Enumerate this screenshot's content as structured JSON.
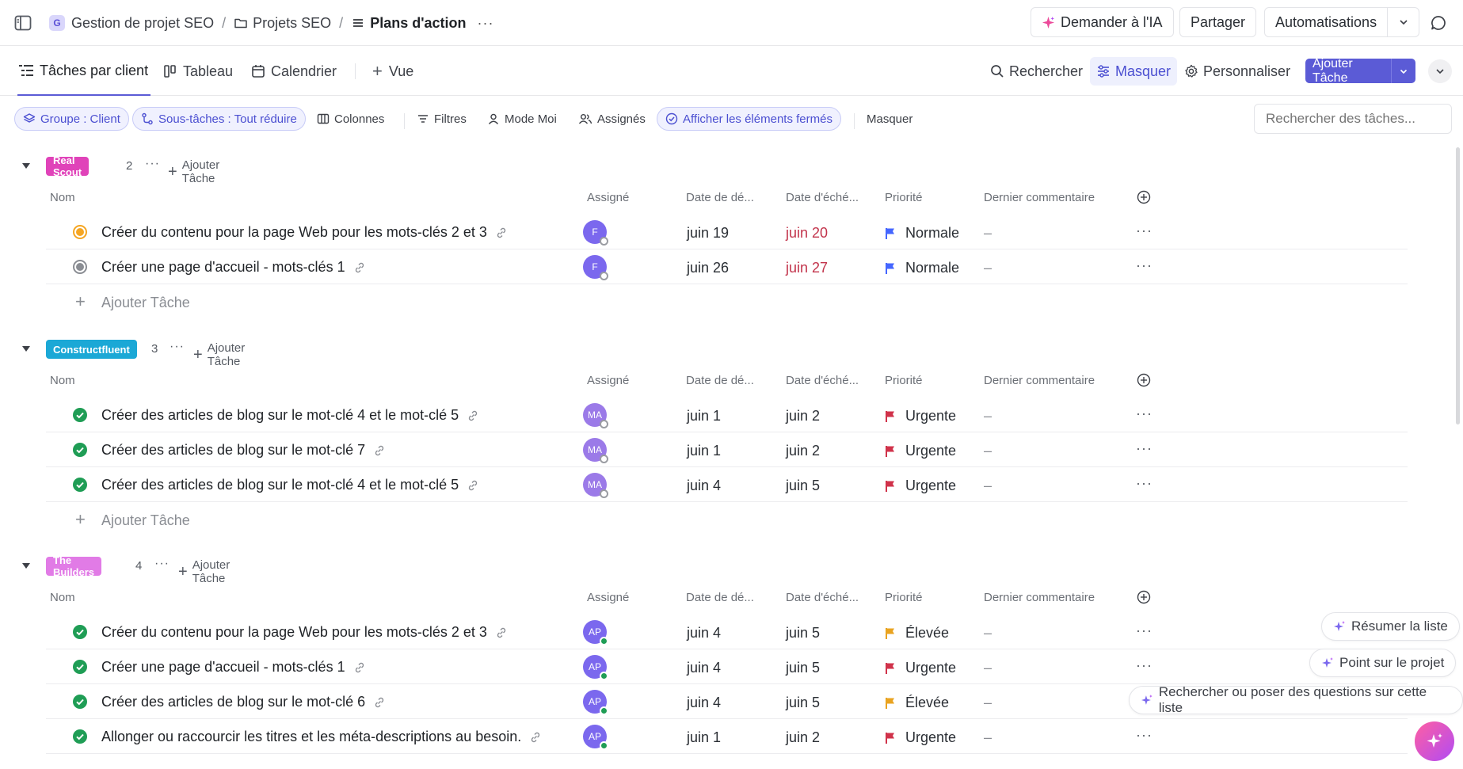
{
  "topbar": {
    "workspace_initial": "G",
    "breadcrumb": [
      "Gestion de projet SEO",
      "Projets SEO",
      "Plans d'action"
    ],
    "ask_ai": "Demander à l'IA",
    "share": "Partager",
    "automations": "Automatisations"
  },
  "views": {
    "tabs": [
      "Tâches par client",
      "Tableau",
      "Calendrier"
    ],
    "add_view": "Vue",
    "search": "Rechercher",
    "hide": "Masquer",
    "customize": "Personnaliser",
    "add_task": "Ajouter Tâche"
  },
  "filters": {
    "group": "Groupe : Client",
    "subtasks": "Sous-tâches : Tout réduire",
    "columns": "Colonnes",
    "filters": "Filtres",
    "me_mode": "Mode Moi",
    "assignees": "Assignés",
    "show_closed": "Afficher les éléments fermés",
    "hide": "Masquer",
    "search_placeholder": "Rechercher des tâches..."
  },
  "columns": {
    "name": "Nom",
    "assignee": "Assigné",
    "start": "Date de dé...",
    "due": "Date d'éché...",
    "priority": "Priorité",
    "comment": "Dernier commentaire"
  },
  "add_task_label": "Ajouter Tâche",
  "groups": [
    {
      "name": "Real Scout",
      "color": "#e043b9",
      "count": "2",
      "tasks": [
        {
          "name": "Créer du contenu pour la page Web pour les mots-clés 2 et 3",
          "status": "in-progress",
          "assignee": "F",
          "start": "juin 19",
          "due": "juin 20",
          "priority": "Normale",
          "comment": "–"
        },
        {
          "name": "Créer une page d'accueil - mots-clés 1",
          "status": "todo",
          "assignee": "F",
          "start": "juin 26",
          "due": "juin 27",
          "priority": "Normale",
          "comment": "–"
        }
      ]
    },
    {
      "name": "Constructfluent",
      "color": "#1ba8d6",
      "count": "3",
      "tasks": [
        {
          "name": "Créer des articles de blog sur le mot-clé 4 et le mot-clé 5",
          "status": "done",
          "assignee": "MA",
          "start": "juin 1",
          "due": "juin 2",
          "priority": "Urgente",
          "comment": "–"
        },
        {
          "name": "Créer des articles de blog sur le mot-clé 7",
          "status": "done",
          "assignee": "MA",
          "start": "juin 1",
          "due": "juin 2",
          "priority": "Urgente",
          "comment": "–"
        },
        {
          "name": "Créer des articles de blog sur le mot-clé 4 et le mot-clé 5",
          "status": "done",
          "assignee": "MA",
          "start": "juin 4",
          "due": "juin 5",
          "priority": "Urgente",
          "comment": "–"
        }
      ]
    },
    {
      "name": "The Builders",
      "color": "#e17be6",
      "count": "4",
      "tasks": [
        {
          "name": "Créer du contenu pour la page Web pour les mots-clés 2 et 3",
          "status": "done",
          "assignee": "AP",
          "start": "juin 4",
          "due": "juin 5",
          "priority": "Élevée",
          "comment": "–"
        },
        {
          "name": "Créer une page d'accueil - mots-clés 1",
          "status": "done",
          "assignee": "AP",
          "start": "juin 4",
          "due": "juin 5",
          "priority": "Urgente",
          "comment": "–"
        },
        {
          "name": "Créer des articles de blog sur le mot-clé 6",
          "status": "done",
          "assignee": "AP",
          "start": "juin 4",
          "due": "juin 5",
          "priority": "Élevée",
          "comment": "–"
        },
        {
          "name": "Allonger ou raccourcir les titres et les méta-descriptions au besoin.",
          "status": "done",
          "assignee": "AP",
          "start": "juin 1",
          "due": "juin 2",
          "priority": "Urgente",
          "comment": "–"
        }
      ]
    }
  ],
  "ai_suggestions": {
    "summarize": "Résumer la liste",
    "standup": "Point sur le projet",
    "ask": "Rechercher ou poser des questions sur cette liste"
  },
  "colors": {
    "accent": "#5b5bd6",
    "urgent": "#d0324a",
    "high": "#e9a320",
    "normal": "#4466ff",
    "done": "#1f9d55",
    "in_progress": "#f5a623",
    "overdue": "#c2334b"
  }
}
